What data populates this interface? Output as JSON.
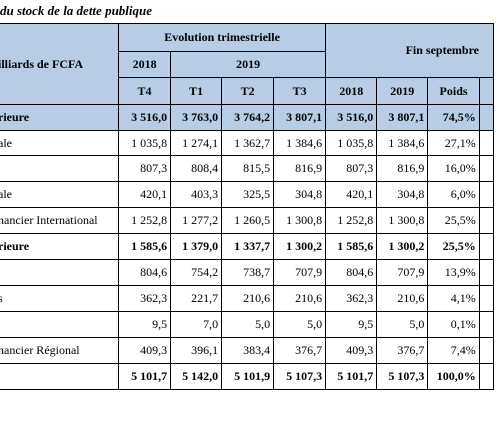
{
  "title": "du stock de la dette publique",
  "header": {
    "unit_label": "illiards de FCFA",
    "evolution_label": "Evolution trimestrielle",
    "fin_label": "Fin septembre",
    "year_2018": "2018",
    "year_2019": "2019",
    "sub_columns": [
      "T4",
      "T1",
      "T2",
      "T3",
      "2018",
      "2019",
      "Poids"
    ]
  },
  "rows": [
    {
      "label": "rieure",
      "values": [
        "3 516,0",
        "3 763,0",
        "3 764,2",
        "3 807,1",
        "3 516,0",
        "3 807,1",
        "74,5%"
      ]
    },
    {
      "label": "ale",
      "values": [
        "1 035,8",
        "1 274,1",
        "1 362,7",
        "1 384,6",
        "1 035,8",
        "1 384,6",
        "27,1%"
      ]
    },
    {
      "label": "",
      "values": [
        "807,3",
        "808,4",
        "815,5",
        "816,9",
        "807,3",
        "816,9",
        "16,0%"
      ]
    },
    {
      "label": "ale",
      "values": [
        "420,1",
        "403,3",
        "325,5",
        "304,8",
        "420,1",
        "304,8",
        "6,0%"
      ]
    },
    {
      "label": "nancier International",
      "values": [
        "1 252,8",
        "1 277,2",
        "1 260,5",
        "1 300,8",
        "1 252,8",
        "1 300,8",
        "25,5%"
      ]
    },
    {
      "label": "rieure",
      "values": [
        "1 585,6",
        "1 379,0",
        "1 337,7",
        "1 300,2",
        "1 585,6",
        "1 300,2",
        "25,5%"
      ]
    },
    {
      "label": "",
      "values": [
        "804,6",
        "754,2",
        "738,7",
        "707,9",
        "804,6",
        "707,9",
        "13,9%"
      ]
    },
    {
      "label": "s",
      "values": [
        "362,3",
        "221,7",
        "210,6",
        "210,6",
        "362,3",
        "210,6",
        "4,1%"
      ]
    },
    {
      "label": "",
      "values": [
        "9,5",
        "7,0",
        "5,0",
        "5,0",
        "9,5",
        "5,0",
        "0,1%"
      ]
    },
    {
      "label": "nancier Régional",
      "values": [
        "409,3",
        "396,1",
        "383,4",
        "376,7",
        "409,3",
        "376,7",
        "7,4%"
      ]
    },
    {
      "label": "",
      "values": [
        "5 101,7",
        "5 142,0",
        "5 101,9",
        "5 107,3",
        "5 101,7",
        "5 107,3",
        "100,0%"
      ]
    }
  ]
}
